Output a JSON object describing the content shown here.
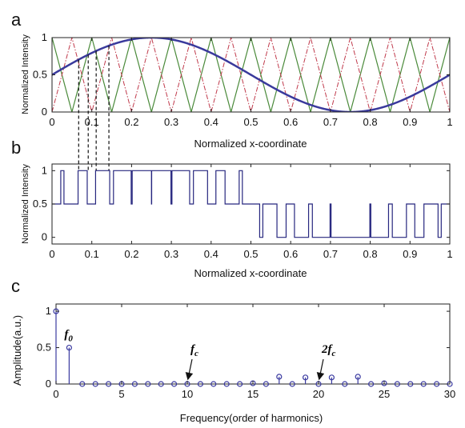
{
  "figure": {
    "panels": [
      "a",
      "b",
      "c"
    ],
    "colors": {
      "sine": "#3a3a9c",
      "green_triangle": "#4a8a3a",
      "red_triangle": "#c0394b",
      "square": "#27277f",
      "stem": "#3a3aa0",
      "axis": "#222222",
      "guide": "#111111"
    }
  },
  "chart_data": [
    {
      "panel": "a",
      "type": "line",
      "xlabel": "Normalized x-coordinate",
      "ylabel": "Normalized Intensity",
      "xlim": [
        0,
        1
      ],
      "ylim": [
        0,
        1
      ],
      "xticks": [
        0,
        0.1,
        0.2,
        0.3,
        0.4,
        0.5,
        0.6,
        0.7,
        0.8,
        0.9,
        1
      ],
      "xtick_labels": [
        "0",
        "0.1",
        "0.2",
        "0.3",
        "0.4",
        "0.5",
        "0.6",
        "0.7",
        "0.8",
        "0.9",
        "1"
      ],
      "yticks": [
        0,
        0.5,
        1
      ],
      "ytick_labels": [
        "0",
        "0.5",
        "1"
      ],
      "series": [
        {
          "style": "solid",
          "color": "#3a3a9c",
          "function": "0.5+0.5*sin(2*pi*x)",
          "width": 2.5
        },
        {
          "style": "solid",
          "color": "#4a8a3a",
          "function": "triangle",
          "period": 0.1,
          "peak_at": 0,
          "width": 1.2
        },
        {
          "style": "dash-dot",
          "color": "#c0394b",
          "function": "triangle",
          "period": 0.1,
          "peak_at": 0.05,
          "width": 1.0
        }
      ],
      "grid": false
    },
    {
      "panel": "b",
      "type": "line",
      "xlabel": "Normalized x-coordinate",
      "ylabel": "Normalized Intensity",
      "xlim": [
        0,
        1
      ],
      "ylim": [
        -0.1,
        1.1
      ],
      "xticks": [
        0,
        0.1,
        0.2,
        0.3,
        0.4,
        0.5,
        0.6,
        0.7,
        0.8,
        0.9,
        1
      ],
      "xtick_labels": [
        "0",
        "0.1",
        "0.2",
        "0.3",
        "0.4",
        "0.5",
        "0.6",
        "0.7",
        "0.8",
        "0.9",
        "1"
      ],
      "yticks": [
        0,
        0.5,
        1
      ],
      "ytick_labels": [
        "0",
        "0.5",
        "1"
      ],
      "series": [
        {
          "style": "step",
          "color": "#27277f",
          "levels": [
            0,
            0.5,
            1
          ],
          "description_of_rule": "1 where sine exceeds both triangle carriers, 0 where below both, 0.5 otherwise"
        }
      ],
      "guide_lines_x": [
        0.067,
        0.091,
        0.111,
        0.143
      ],
      "grid": false
    },
    {
      "panel": "c",
      "type": "stem",
      "xlabel": "Frequency(order of harmonics)",
      "ylabel": "Amplitude(a.u.)",
      "xlim": [
        0,
        30
      ],
      "ylim": [
        0,
        1.1
      ],
      "xticks": [
        0,
        5,
        10,
        15,
        20,
        25,
        30
      ],
      "xtick_labels": [
        "0",
        "5",
        "10",
        "15",
        "20",
        "25",
        "30"
      ],
      "yticks": [
        0,
        0.5,
        1
      ],
      "ytick_labels": [
        "0",
        "0.5",
        "1"
      ],
      "x": [
        0,
        1,
        2,
        3,
        4,
        5,
        6,
        7,
        8,
        9,
        10,
        11,
        12,
        13,
        14,
        15,
        16,
        17,
        18,
        19,
        20,
        21,
        22,
        23,
        24,
        25,
        26,
        27,
        28,
        29,
        30
      ],
      "values": [
        1.0,
        0.5,
        0,
        0,
        0,
        0,
        0,
        0,
        0,
        0,
        0,
        0,
        0,
        0,
        0,
        0.01,
        0,
        0.1,
        0,
        0.09,
        0,
        0.09,
        0,
        0.1,
        0,
        0.01,
        0,
        0,
        0,
        0,
        0
      ],
      "annotations": [
        {
          "text": "f0",
          "base": "f",
          "sub": "0",
          "x": 1,
          "y": 0.5
        },
        {
          "text": "fc",
          "base": "f",
          "sub": "c",
          "x": 10,
          "y": 0.0,
          "arrow": true
        },
        {
          "text": "2fc",
          "base": "2f",
          "sub": "c",
          "x": 20,
          "y": 0.0,
          "arrow": true
        }
      ],
      "grid": false
    }
  ]
}
